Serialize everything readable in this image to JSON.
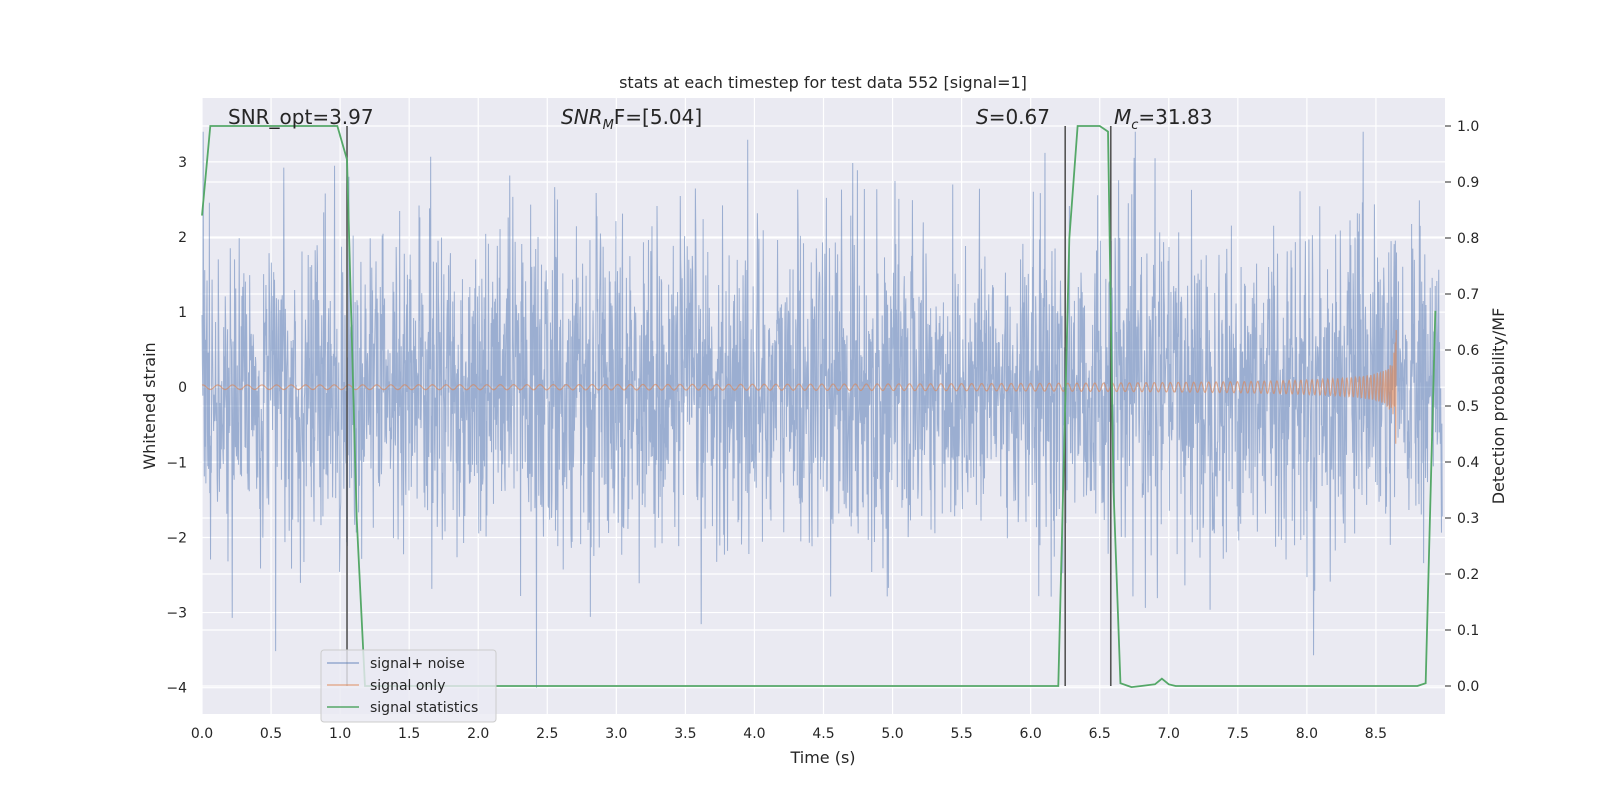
{
  "chart_data": {
    "type": "line",
    "title": "stats at each timestep for test data 552 [signal=1]",
    "xlabel": "Time (s)",
    "ylabel": "Whitened strain",
    "y2label": "Detection probability/MF",
    "xlim": [
      0.0,
      9.0
    ],
    "ylim": [
      -4.35,
      3.85
    ],
    "y2lim": [
      -0.05,
      1.05
    ],
    "x_ticks": [
      0.0,
      0.5,
      1.0,
      1.5,
      2.0,
      2.5,
      3.0,
      3.5,
      4.0,
      4.5,
      5.0,
      5.5,
      6.0,
      6.5,
      7.0,
      7.5,
      8.0,
      8.5
    ],
    "x_tick_labels": [
      "0.0",
      "0.5",
      "1.0",
      "1.5",
      "2.0",
      "2.5",
      "3.0",
      "3.5",
      "4.0",
      "4.5",
      "5.0",
      "5.5",
      "6.0",
      "6.5",
      "7.0",
      "7.5",
      "8.0",
      "8.5"
    ],
    "y_ticks": [
      3,
      2,
      1,
      0,
      -1,
      -2,
      -3,
      -4
    ],
    "y_tick_labels": [
      "3",
      "2",
      "1",
      "0",
      "−1",
      "−2",
      "−3",
      "−4"
    ],
    "y2_ticks": [
      1.0,
      0.9,
      0.8,
      0.7,
      0.6,
      0.5,
      0.4,
      0.3,
      0.2,
      0.1,
      0.0
    ],
    "y2_tick_labels": [
      "1.0",
      "0.9",
      "0.8",
      "0.7",
      "0.6",
      "0.5",
      "0.4",
      "0.3",
      "0.2",
      "0.1",
      "0.0"
    ],
    "grid": true,
    "legend_placement": "lower-left",
    "annotations": {
      "snr_opt": "SNR_opt=3.97",
      "snr_mf_symbol": "SNR",
      "snr_mf_sub": "M",
      "snr_mf_rest": "F=[5.04]",
      "s_symbol": "S",
      "s_rest": "=0.67",
      "mc_symbol": "M",
      "mc_sub": "c",
      "mc_rest": "=31.83"
    },
    "series": [
      {
        "name": "signal+ noise",
        "color": "#4c72b0",
        "kind": "noise",
        "x_range": [
          0.0,
          8.98
        ],
        "y_envelope": [
          -4.0,
          3.4
        ]
      },
      {
        "name": "signal only",
        "color": "#dd8452",
        "kind": "chirp",
        "x_range": [
          0.0,
          8.65
        ],
        "peak_amplitude": 0.95
      },
      {
        "name": "signal statistics",
        "color": "#55a868",
        "axis": "y2",
        "x": [
          0.0,
          0.06,
          0.12,
          0.5,
          0.98,
          1.05,
          1.12,
          1.18,
          1.3,
          2.0,
          3.0,
          4.0,
          5.0,
          5.5,
          6.0,
          6.2,
          6.28,
          6.34,
          6.5,
          6.56,
          6.6,
          6.65,
          6.73,
          6.8,
          6.9,
          6.95,
          7.0,
          7.05,
          7.2,
          8.0,
          8.5,
          8.8,
          8.86,
          8.93
        ],
        "y": [
          0.84,
          1.0,
          1.0,
          1.0,
          1.0,
          0.94,
          0.3,
          0.0,
          0.0,
          0.0,
          0.0,
          0.0,
          0.0,
          0.0,
          0.0,
          0.0,
          0.8,
          1.0,
          1.0,
          0.99,
          0.35,
          0.005,
          -0.002,
          0.0,
          0.003,
          0.013,
          0.003,
          0.0,
          0.0,
          0.0,
          0.0,
          0.0,
          0.005,
          0.67
        ]
      }
    ],
    "vertical_markers": [
      1.05,
      6.25,
      6.58
    ],
    "marker_color": "#555555"
  }
}
